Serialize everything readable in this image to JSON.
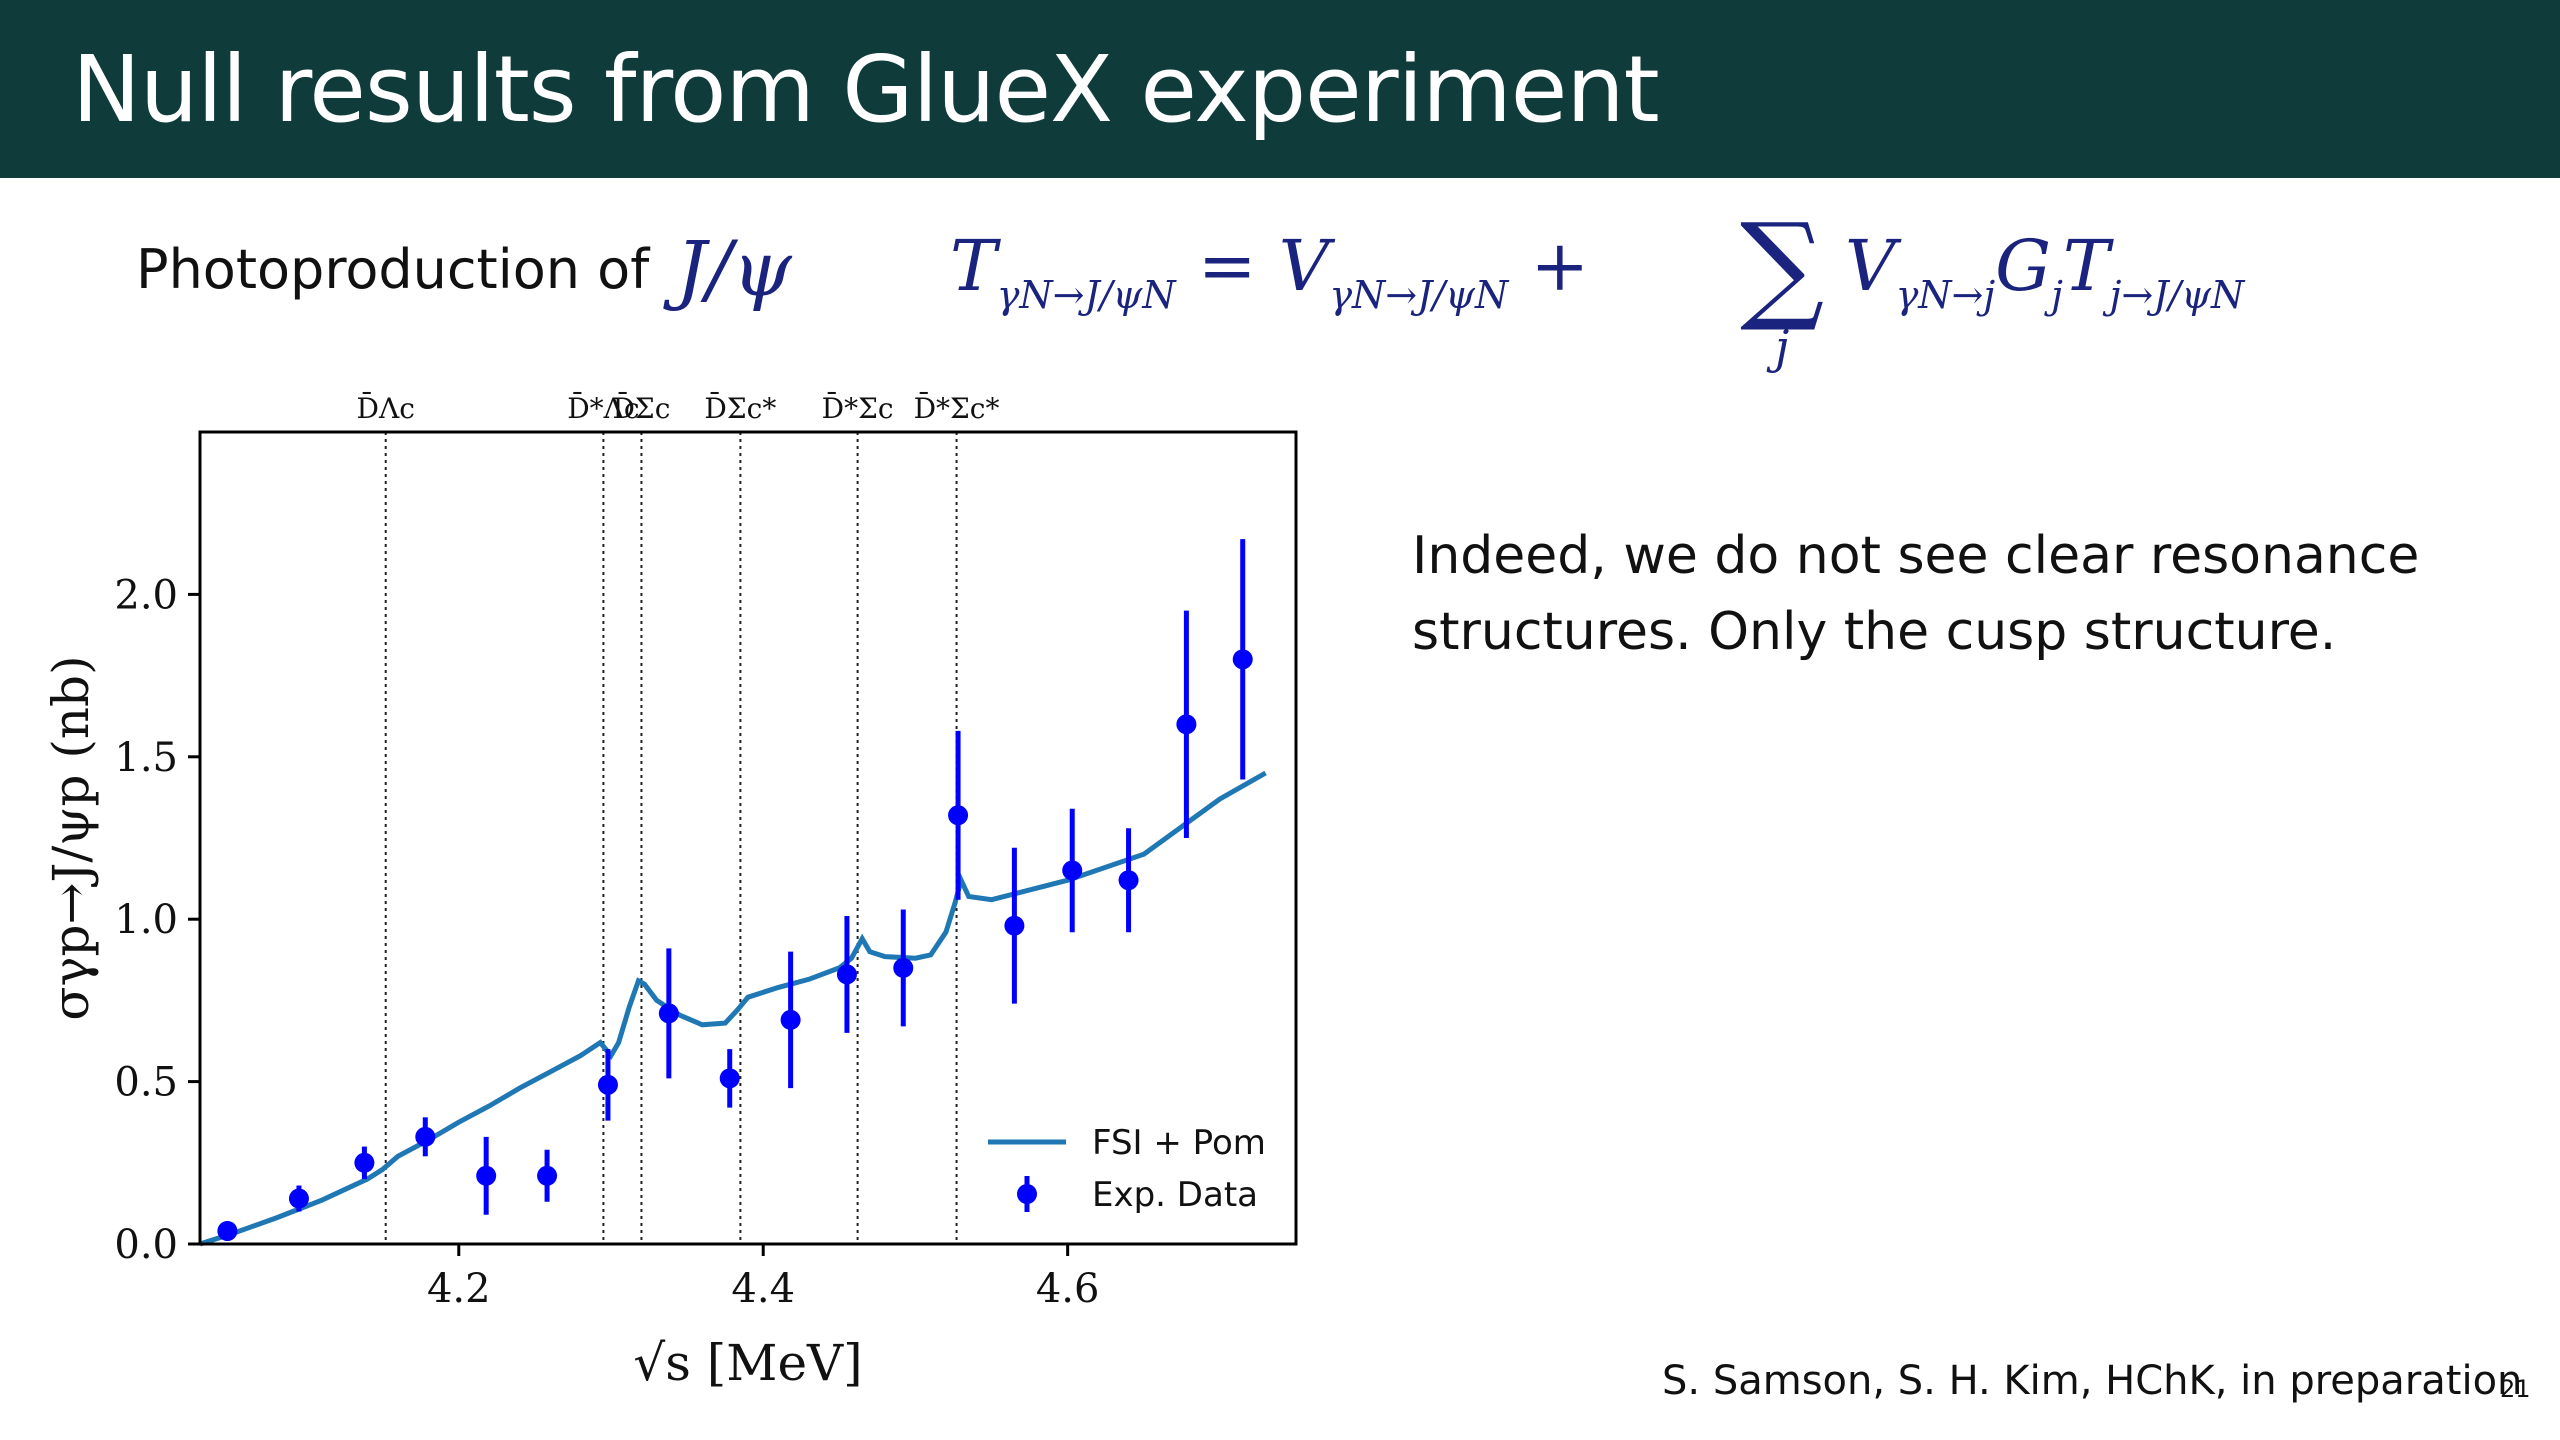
{
  "slide": {
    "title": "Null results from GlueX experiment",
    "subtitle_text": "Photoproduction of",
    "subtitle_symbol": "J/ψ",
    "equation": {
      "lhs": "T",
      "lhs_sub": "γN→J/ψN",
      "eq": " = V",
      "term1_sub": "γN→J/ψN",
      "plus": " + ",
      "sum": "∑",
      "sum_index": "j",
      "term2_v": "V",
      "term2_v_sub": "γN→j",
      "term2_g": "G",
      "term2_g_sub": "j",
      "term2_t": "T",
      "term2_t_sub": "j→J/ψN"
    },
    "comment": "Indeed, we do not see  clear resonance structures. Only the cusp structure.",
    "credit": "S. Samson, S. H. Kim, HChK, in preparation",
    "page_number": "21"
  },
  "chart_data": {
    "type": "scatter",
    "xlabel": "√s [MeV]",
    "ylabel": "σγp→J/ψp (nb)",
    "xlim": [
      4.03,
      4.75
    ],
    "ylim": [
      0.0,
      2.5
    ],
    "xticks": [
      4.2,
      4.4,
      4.6
    ],
    "xtick_labels": [
      "4.2",
      "4.4",
      "4.6"
    ],
    "yticks": [
      0.0,
      0.5,
      1.0,
      1.5,
      2.0
    ],
    "ytick_labels": [
      "0.0",
      "0.5",
      "1.0",
      "1.5",
      "2.0"
    ],
    "thresholds": [
      {
        "x": 4.152,
        "label": "D̄Λc"
      },
      {
        "x": 4.295,
        "label": "D̄*Λc"
      },
      {
        "x": 4.32,
        "label": "D̄Σc"
      },
      {
        "x": 4.385,
        "label": "D̄Σc*"
      },
      {
        "x": 4.462,
        "label": "D̄*Σc"
      },
      {
        "x": 4.527,
        "label": "D̄*Σc*"
      }
    ],
    "series": [
      {
        "name": "FSI + Pom",
        "kind": "line",
        "color": "#1f77b4",
        "x": [
          4.03,
          4.05,
          4.08,
          4.11,
          4.14,
          4.15,
          4.16,
          4.18,
          4.2,
          4.22,
          4.24,
          4.26,
          4.28,
          4.293,
          4.3,
          4.305,
          4.312,
          4.318,
          4.322,
          4.33,
          4.345,
          4.36,
          4.375,
          4.383,
          4.39,
          4.41,
          4.43,
          4.45,
          4.458,
          4.465,
          4.47,
          4.48,
          4.5,
          4.51,
          4.52,
          4.526,
          4.53,
          4.535,
          4.55,
          4.6,
          4.65,
          4.7,
          4.73
        ],
        "y": [
          0.0,
          0.03,
          0.08,
          0.135,
          0.2,
          0.23,
          0.27,
          0.32,
          0.375,
          0.425,
          0.48,
          0.53,
          0.58,
          0.62,
          0.58,
          0.62,
          0.73,
          0.81,
          0.8,
          0.75,
          0.705,
          0.675,
          0.68,
          0.72,
          0.76,
          0.79,
          0.815,
          0.85,
          0.88,
          0.94,
          0.9,
          0.885,
          0.88,
          0.89,
          0.96,
          1.05,
          1.12,
          1.07,
          1.06,
          1.12,
          1.2,
          1.37,
          1.45
        ]
      },
      {
        "name": "Exp. Data",
        "kind": "errorbar",
        "color": "#0000ff",
        "x": [
          4.048,
          4.095,
          4.138,
          4.178,
          4.218,
          4.258,
          4.298,
          4.338,
          4.378,
          4.418,
          4.455,
          4.492,
          4.528,
          4.565,
          4.603,
          4.64,
          4.678,
          4.715
        ],
        "y": [
          0.04,
          0.14,
          0.25,
          0.33,
          0.21,
          0.21,
          0.49,
          0.71,
          0.51,
          0.69,
          0.83,
          0.85,
          1.32,
          0.98,
          1.15,
          1.12,
          1.6,
          1.8
        ],
        "yerr": [
          0.03,
          0.04,
          0.05,
          0.06,
          0.12,
          0.08,
          0.11,
          0.2,
          0.09,
          0.21,
          0.18,
          0.18,
          0.26,
          0.24,
          0.19,
          0.16,
          0.35,
          0.37
        ]
      }
    ],
    "legend_position": "lower-right",
    "grid": false
  }
}
